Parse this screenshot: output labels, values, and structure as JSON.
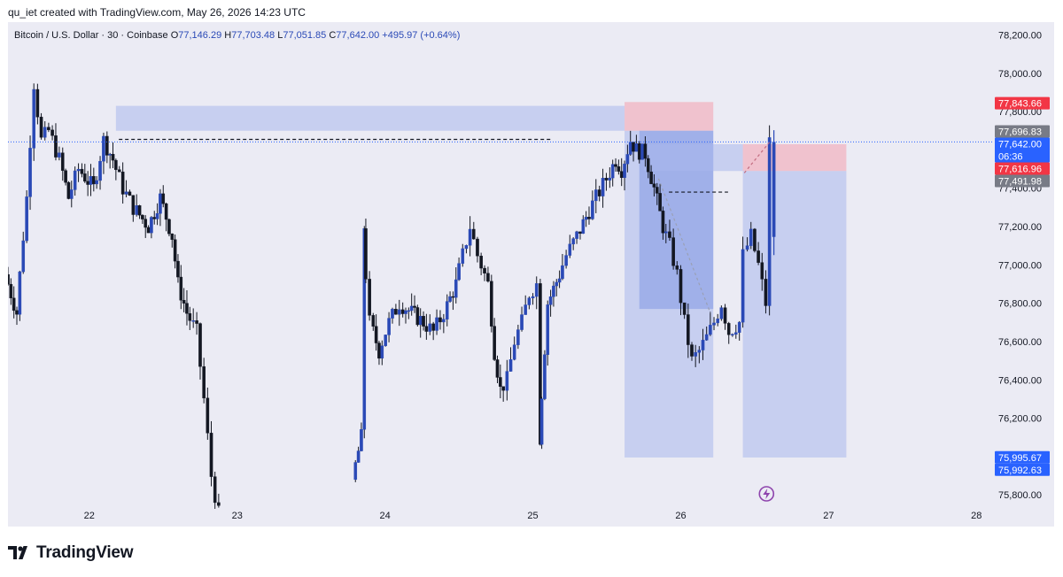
{
  "header": {
    "credit": "qu_iet created with TradingView.com, May 26, 2026 14:23 UTC"
  },
  "symbol": {
    "title": "Bitcoin / U.S. Dollar · 30 · Coinbase",
    "open_label": "O",
    "open": "77,146.29",
    "high_label": "H",
    "high": "77,703.48",
    "low_label": "L",
    "low": "77,051.85",
    "close_label": "C",
    "close": "77,642.00",
    "change": "+495.97 (+0.64%)"
  },
  "footer": {
    "brand": "TradingView",
    "logo_icon": "tradingview-logo-icon"
  },
  "colors": {
    "background": "#ebebf4",
    "candle": "#131722",
    "candle_up_edge": "#2a49b6",
    "zone_blue": "#aab9e8",
    "zone_red": "#f2a7b4",
    "axis_text": "#131722",
    "price_line": "#2962ff"
  },
  "chart_data": {
    "type": "candlestick",
    "symbol": "Bitcoin / U.S. Dollar",
    "timeframe": "30",
    "exchange": "Coinbase",
    "y_ticks": [
      78200,
      78000,
      77800,
      77600,
      77400,
      77200,
      77000,
      76800,
      76600,
      76400,
      76200,
      76000,
      75800
    ],
    "y_tick_labels": [
      "78,200.00",
      "78,000.00",
      "77,800.00",
      "77,600.00",
      "77,400.00",
      "77,200.00",
      "77,000.00",
      "76,800.00",
      "76,600.00",
      "76,400.00",
      "76,200.00",
      "76,000.00",
      "75,800.00"
    ],
    "ylim": [
      75750,
      78230
    ],
    "x_ticks": [
      "22",
      "23",
      "24",
      "25",
      "26",
      "27",
      "28"
    ],
    "xlim_days": [
      21.45,
      28.1
    ],
    "ohlc_path": [
      [
        21.45,
        76950
      ],
      [
        21.53,
        76750
      ],
      [
        21.6,
        77350
      ],
      [
        21.65,
        77950
      ],
      [
        21.7,
        77650
      ],
      [
        21.75,
        77700
      ],
      [
        21.82,
        77550
      ],
      [
        21.88,
        77350
      ],
      [
        21.95,
        77500
      ],
      [
        22.05,
        77400
      ],
      [
        22.12,
        77650
      ],
      [
        22.18,
        77550
      ],
      [
        22.25,
        77400
      ],
      [
        22.32,
        77300
      ],
      [
        22.42,
        77200
      ],
      [
        22.5,
        77350
      ],
      [
        22.58,
        77150
      ],
      [
        22.62,
        76900
      ],
      [
        22.68,
        76750
      ],
      [
        22.75,
        76650
      ],
      [
        22.8,
        76300
      ],
      [
        22.85,
        75900
      ],
      [
        22.9,
        75700
      ],
      [
        23.8,
        75880
      ],
      [
        23.86,
        76100
      ],
      [
        23.87,
        77200
      ],
      [
        23.92,
        76700
      ],
      [
        23.98,
        76550
      ],
      [
        24.05,
        76700
      ],
      [
        24.12,
        76800
      ],
      [
        24.2,
        76750
      ],
      [
        24.28,
        76700
      ],
      [
        24.35,
        76650
      ],
      [
        24.42,
        76750
      ],
      [
        24.5,
        76900
      ],
      [
        24.55,
        77050
      ],
      [
        24.6,
        77200
      ],
      [
        24.65,
        77050
      ],
      [
        24.72,
        76900
      ],
      [
        24.76,
        76550
      ],
      [
        24.8,
        76350
      ],
      [
        24.85,
        76400
      ],
      [
        24.9,
        76600
      ],
      [
        24.95,
        76700
      ],
      [
        25.0,
        76850
      ],
      [
        25.05,
        76900
      ],
      [
        25.06,
        76100
      ],
      [
        25.12,
        76800
      ],
      [
        25.2,
        76950
      ],
      [
        25.25,
        77050
      ],
      [
        25.32,
        77150
      ],
      [
        25.38,
        77250
      ],
      [
        25.45,
        77350
      ],
      [
        25.52,
        77450
      ],
      [
        25.58,
        77550
      ],
      [
        25.62,
        77500
      ],
      [
        25.68,
        77650
      ],
      [
        25.72,
        77600
      ],
      [
        25.78,
        77580
      ],
      [
        25.84,
        77400
      ],
      [
        25.9,
        77200
      ],
      [
        25.95,
        77100
      ],
      [
        26.0,
        76950
      ],
      [
        26.05,
        76700
      ],
      [
        26.1,
        76500
      ],
      [
        26.15,
        76550
      ],
      [
        26.2,
        76620
      ],
      [
        26.25,
        76700
      ],
      [
        26.3,
        76800
      ],
      [
        26.35,
        76650
      ],
      [
        26.42,
        76700
      ],
      [
        26.45,
        77050
      ],
      [
        26.5,
        77150
      ],
      [
        26.55,
        77000
      ],
      [
        26.6,
        76800
      ],
      [
        26.63,
        77642
      ]
    ],
    "zones": [
      {
        "from": 22.18,
        "to": 25.62,
        "high": 77830,
        "low": 77700,
        "color": "zone_blue"
      },
      {
        "from": 25.62,
        "to": 26.22,
        "high": 77850,
        "low": 77700,
        "color": "zone_red"
      },
      {
        "from": 25.62,
        "to": 26.22,
        "high": 77700,
        "low": 75995,
        "color": "zone_blue"
      },
      {
        "from": 25.72,
        "to": 26.22,
        "high": 77700,
        "low": 76770,
        "color": "zone_blue_dark"
      },
      {
        "from": 25.75,
        "to": 26.42,
        "high": 77630,
        "low": 77490,
        "color": "zone_blue"
      },
      {
        "from": 26.42,
        "to": 27.12,
        "high": 77630,
        "low": 77490,
        "color": "zone_red"
      },
      {
        "from": 26.42,
        "to": 27.12,
        "high": 77490,
        "low": 75995,
        "color": "zone_blue"
      }
    ],
    "dashed_levels": [
      {
        "from": 22.2,
        "to": 25.12,
        "price": 77655
      },
      {
        "from": 25.92,
        "to": 26.32,
        "price": 77380
      }
    ],
    "current_price": 77642.0,
    "price_tags": [
      {
        "price": 77843.66,
        "label": "77,843.66",
        "color": "#f23645"
      },
      {
        "price": 77696.83,
        "label": "77,696.83",
        "color": "#787b86"
      },
      {
        "price": 77642.0,
        "label": "77,642.00",
        "sublabel": "06:36",
        "color": "#2962ff"
      },
      {
        "price": 77616.96,
        "label": "77,616.96",
        "color": "#f23645"
      },
      {
        "price": 77491.98,
        "label": "77,491.98",
        "color": "#787b86"
      },
      {
        "price": 75995.67,
        "label": "75,995.67",
        "color": "#2962ff"
      },
      {
        "price": 75992.63,
        "label": "75,992.63",
        "color": "#2962ff"
      }
    ]
  }
}
